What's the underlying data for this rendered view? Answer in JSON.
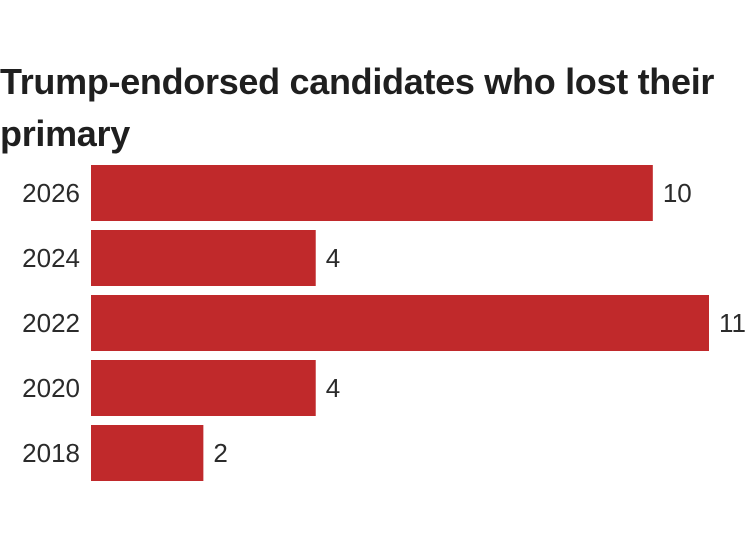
{
  "chart_data": {
    "type": "bar",
    "orientation": "horizontal",
    "title": "Trump-endorsed candidates who lost their primary",
    "categories": [
      "2026",
      "2024",
      "2022",
      "2020",
      "2018"
    ],
    "values": [
      10,
      4,
      11,
      4,
      2
    ],
    "xlabel": "",
    "ylabel": "",
    "xlim": [
      0,
      11
    ],
    "grid": false,
    "legend": "none",
    "bar_color": "#c0292b"
  }
}
